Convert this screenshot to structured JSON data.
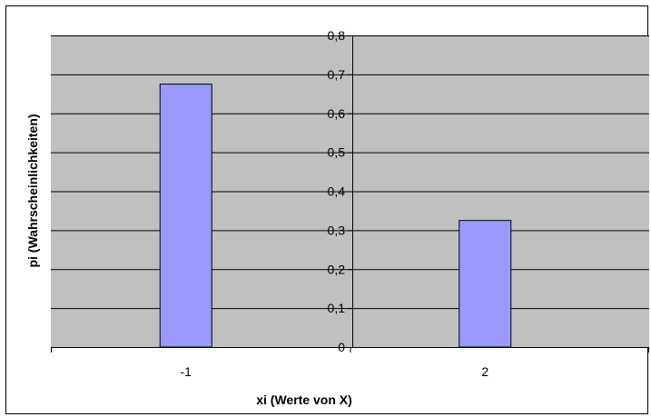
{
  "chart_data": {
    "type": "bar",
    "categories": [
      "-1",
      "2"
    ],
    "series": [
      {
        "values": [
          0.675,
          0.325
        ]
      }
    ],
    "xlabel": "xi (Werte von X)",
    "ylabel": "pi (Wahrscheinlichkeiten)",
    "ylim": [
      0,
      0.8
    ],
    "yticks": [
      "0",
      "0,1",
      "0,2",
      "0,3",
      "0,4",
      "0,5",
      "0,6",
      "0,7",
      "0,8"
    ],
    "grid": true,
    "legend": "none",
    "colors": {
      "plot_background": "#c0c0c0",
      "bar_fill": "#9999ff",
      "bar_stroke": "#000000",
      "gridline": "#000000"
    }
  }
}
